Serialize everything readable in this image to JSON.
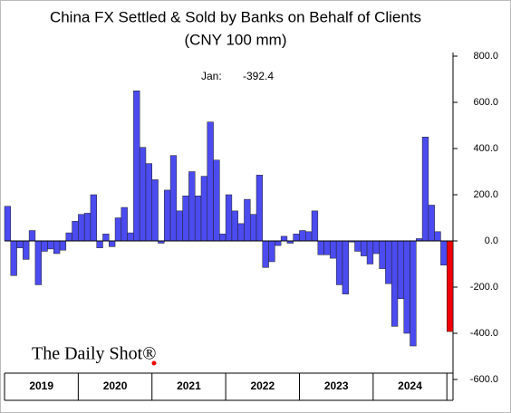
{
  "chart_data": {
    "type": "bar",
    "title": "China FX Settled & Sold by Banks on Behalf of Clients",
    "subtitle": "(CNY 100 mm)",
    "annotation": "Jan:",
    "watermark": "The Daily Shot®",
    "categories": [
      null,
      null,
      null,
      null,
      null,
      null,
      null,
      null,
      null,
      null,
      null,
      null,
      null,
      null,
      null,
      null,
      null,
      null,
      null,
      null,
      null,
      null,
      null,
      null,
      null,
      null,
      null,
      null,
      null,
      null,
      null,
      null,
      null,
      null,
      null,
      null,
      null,
      null,
      null,
      null,
      null,
      null,
      null,
      null,
      null,
      null,
      null,
      null,
      null,
      null,
      null,
      null,
      null,
      null,
      null,
      null,
      null,
      null,
      null,
      null,
      null,
      null,
      null,
      null,
      null,
      null,
      null,
      null,
      null,
      null,
      null,
      null,
      null
    ],
    "values": [
      150,
      -150,
      -30,
      -80,
      45,
      -190,
      -45,
      -35,
      -55,
      -40,
      35,
      85,
      115,
      120,
      200,
      -30,
      30,
      -25,
      100,
      145,
      35,
      650,
      405,
      335,
      265,
      -10,
      220,
      370,
      130,
      195,
      300,
      195,
      280,
      515,
      350,
      30,
      200,
      130,
      75,
      180,
      115,
      285,
      -115,
      -90,
      -20,
      20,
      -10,
      30,
      45,
      40,
      130,
      -60,
      -60,
      -75,
      -190,
      -230,
      -5,
      -45,
      -65,
      -100,
      -55,
      -120,
      -185,
      -370,
      -250,
      -400,
      -455,
      10,
      450,
      155,
      40,
      -105,
      -392.4
    ],
    "x_groups": [
      "2019",
      "2020",
      "2021",
      "2022",
      "2023",
      "2024"
    ],
    "color": "#4b4bf0",
    "last_color": "#ee0000",
    "ylim": [
      -600,
      800
    ],
    "yticks": [
      {
        "value": -600,
        "label": "-600.0"
      },
      {
        "value": -400,
        "label": "-400.0"
      },
      {
        "value": -200,
        "label": "-200.0"
      },
      {
        "value": 0,
        "label": "0.0"
      },
      {
        "value": 200,
        "label": "200.0"
      },
      {
        "value": 400,
        "label": "400.0"
      },
      {
        "value": 600,
        "label": "600.0"
      },
      {
        "value": 800,
        "label": "800.0"
      }
    ],
    "grid": false
  }
}
